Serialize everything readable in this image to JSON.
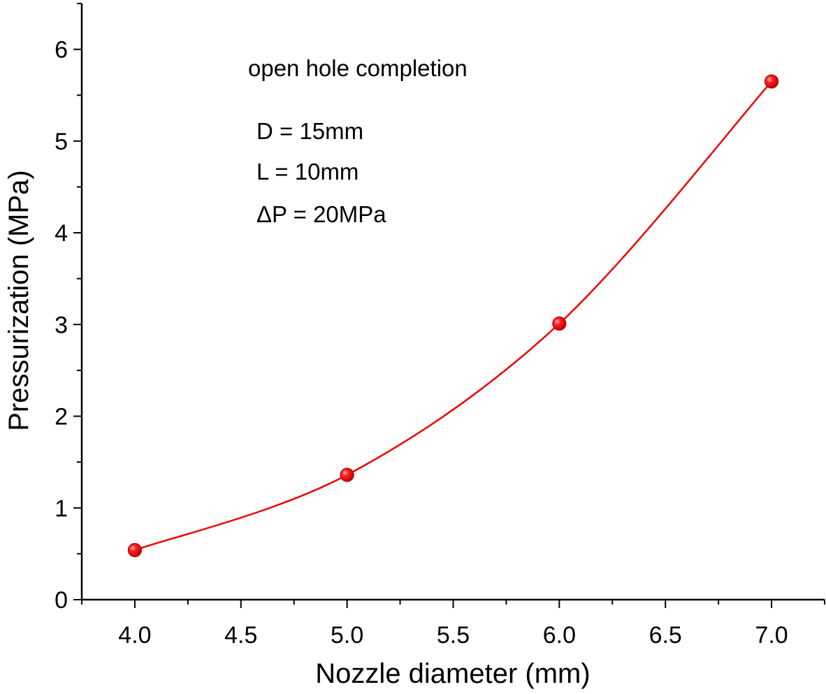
{
  "chart_data": {
    "type": "line",
    "title": "",
    "xlabel": "Nozzle diameter (mm)",
    "ylabel": "Pressurization (MPa)",
    "xlim": [
      3.75,
      7.25
    ],
    "ylim": [
      0,
      6.5
    ],
    "x_ticks": [
      "4.0",
      "4.5",
      "5.0",
      "5.5",
      "6.0",
      "6.5",
      "7.0"
    ],
    "y_ticks": [
      "0",
      "1",
      "2",
      "3",
      "4",
      "5",
      "6"
    ],
    "grid": false,
    "smooth": true,
    "series": [
      {
        "color": "#ee0000",
        "marker": "sphere",
        "x": [
          4.0,
          5.0,
          6.0,
          7.0
        ],
        "y": [
          0.54,
          1.36,
          3.01,
          5.65
        ]
      }
    ],
    "annotations": [
      "open hole completion",
      "D = 15mm",
      "L = 10mm",
      "ΔP = 20MPa"
    ]
  }
}
